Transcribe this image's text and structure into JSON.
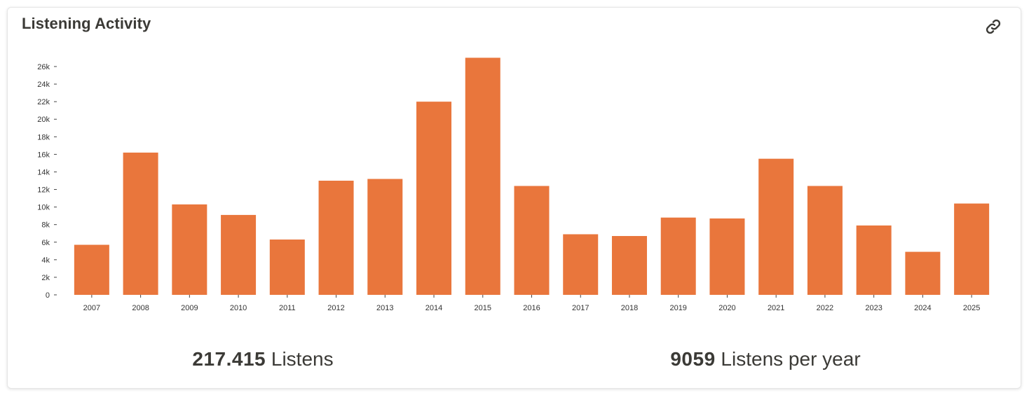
{
  "header": {
    "title": "Listening Activity",
    "link_icon": "link-icon"
  },
  "chart_data": {
    "type": "bar",
    "title": "",
    "xlabel": "",
    "ylabel": "",
    "categories": [
      "2007",
      "2008",
      "2009",
      "2010",
      "2011",
      "2012",
      "2013",
      "2014",
      "2015",
      "2016",
      "2017",
      "2018",
      "2019",
      "2020",
      "2021",
      "2022",
      "2023",
      "2024",
      "2025"
    ],
    "values": [
      5700,
      16200,
      10300,
      9100,
      6300,
      13000,
      13200,
      22000,
      27000,
      12400,
      6900,
      6700,
      8800,
      8700,
      15500,
      12400,
      7900,
      4900,
      10400
    ],
    "ylim": [
      0,
      27000
    ],
    "yticks": [
      0,
      2000,
      4000,
      6000,
      8000,
      10000,
      12000,
      14000,
      16000,
      18000,
      20000,
      22000,
      24000,
      26000
    ],
    "ytick_labels": [
      "0",
      "2k",
      "4k",
      "6k",
      "8k",
      "10k",
      "12k",
      "14k",
      "16k",
      "18k",
      "20k",
      "22k",
      "24k",
      "26k"
    ],
    "bar_color": "#e9763c",
    "grid": false,
    "legend": "none"
  },
  "stats": {
    "total_value": "217.415",
    "total_label": "Listens",
    "per_year_value": "9059",
    "per_year_label": "Listens per year"
  },
  "colors": {
    "text": "#3b3a36",
    "bar": "#e9763c",
    "axis": "#444444"
  }
}
